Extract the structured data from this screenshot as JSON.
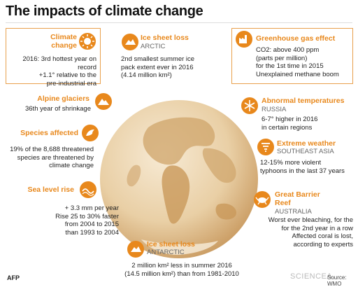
{
  "title": "The impacts of climate change",
  "accent_color": "#e8881c",
  "sections": {
    "climate_change": {
      "heading": "Climate change",
      "body_lines": [
        "2016: 3rd hottest year on record",
        "+1.1° relative to the",
        "pre-industrial era"
      ],
      "icon": "sun-icon"
    },
    "ice_arctic": {
      "heading": "Ice sheet loss",
      "region": "ARCTIC",
      "body_lines": [
        "2nd smallest summer ice",
        "pack extent ever in 2016",
        "(4.14 million km²)"
      ],
      "icon": "ice-icon"
    },
    "greenhouse": {
      "heading": "Greenhouse gas effect",
      "body_lines": [
        "CO2: above 400 ppm",
        "(parts per million)",
        "for the 1st time in 2015",
        "Unexplained methane boom"
      ],
      "icon": "factory-icon"
    },
    "glaciers": {
      "heading": "Alpine glaciers",
      "body_lines": [
        "36th year of shrinkage"
      ],
      "icon": "mountain-icon"
    },
    "abnormal_temps": {
      "heading": "Abnormal temperatures",
      "region": "RUSSIA",
      "body_lines": [
        "6-7° higher in 2016",
        "in certain regions"
      ],
      "icon": "snowflake-icon"
    },
    "species": {
      "heading": "Species affected",
      "body_lines": [
        "19% of the 8,688 threatened",
        "species are threatened by",
        "climate change"
      ],
      "icon": "bird-icon"
    },
    "extreme_weather": {
      "heading": "Extreme weather",
      "region": "SOUTHEAST ASIA",
      "body_lines": [
        "12-15% more violent",
        "typhoons in the last 37 years"
      ],
      "icon": "tornado-icon"
    },
    "sea_level": {
      "heading": "Sea level rise",
      "body_lines": [
        "+ 3.3 mm per year",
        "Rise 25 to 30% faster",
        "from 2004 to 2015",
        "than 1993 to 2004"
      ],
      "icon": "wave-icon"
    },
    "barrier_reef": {
      "heading_lines": [
        "Great Barrier",
        "Reef"
      ],
      "region": "AUSTRALIA",
      "body_lines": [
        "Worst ever bleaching, for the",
        "for the 2nd year in a row",
        "Affected coral is lost,",
        "according to experts"
      ],
      "icon": "crab-icon"
    },
    "ice_antarctic": {
      "heading": "Ice sheet loss",
      "region": "ANTARCTIC",
      "body_lines": [
        "2 million km² less in summer 2016",
        "(14.5 million km²) than from 1981-2010"
      ],
      "icon": "ice-icon"
    }
  },
  "footer": {
    "agency": "AFP",
    "source": "Source: WMO",
    "watermark": "SCIENCEA"
  }
}
